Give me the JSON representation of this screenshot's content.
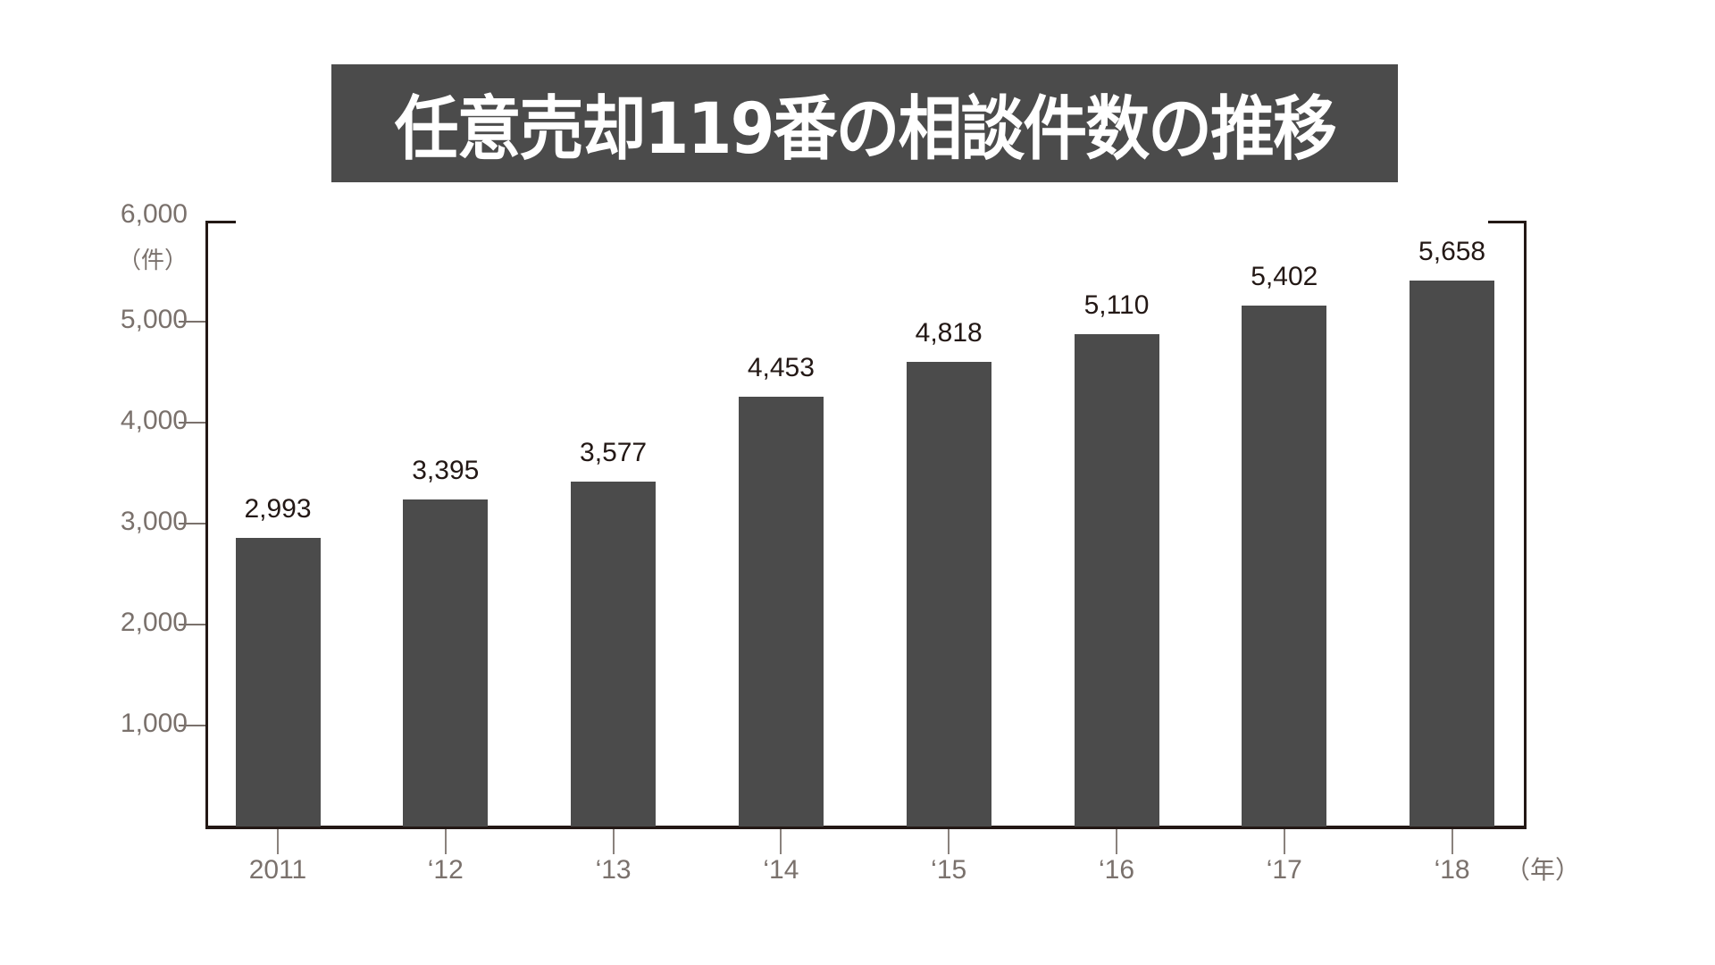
{
  "title": "任意売却119番の相談件数の推移",
  "y_axis": {
    "unit": "（件）",
    "ticks": [
      "1,000",
      "2,000",
      "3,000",
      "4,000",
      "5,000",
      "6,000"
    ]
  },
  "x_axis": {
    "unit": "（年）",
    "labels": [
      "2011",
      "‘12",
      "‘13",
      "‘14",
      "‘15",
      "‘16",
      "‘17",
      "‘18"
    ]
  },
  "bars": [
    {
      "label": "2011",
      "value": 2993,
      "display": "2,993"
    },
    {
      "label": "‘12",
      "value": 3395,
      "display": "3,395"
    },
    {
      "label": "‘13",
      "value": 3577,
      "display": "3,577"
    },
    {
      "label": "‘14",
      "value": 4453,
      "display": "4,453"
    },
    {
      "label": "‘15",
      "value": 4818,
      "display": "4,818"
    },
    {
      "label": "‘16",
      "value": 5110,
      "display": "5,110"
    },
    {
      "label": "‘17",
      "value": 5402,
      "display": "5,402"
    },
    {
      "label": "‘18",
      "value": 5658,
      "display": "5,658"
    }
  ],
  "colors": {
    "bar": "#4b4b4b",
    "title_bg": "#4b4b4b",
    "title_text": "#ffffff",
    "axis": "#231815",
    "tick_label": "#7a716c",
    "value_label": "#231815"
  },
  "chart_data": {
    "type": "bar",
    "title": "任意売却119番の相談件数の推移",
    "categories": [
      "2011",
      "‘12",
      "‘13",
      "‘14",
      "‘15",
      "‘16",
      "‘17",
      "‘18"
    ],
    "values": [
      2993,
      3395,
      3577,
      4453,
      4818,
      5110,
      5402,
      5658
    ],
    "xlabel": "（年）",
    "ylabel": "（件）",
    "ylim": [
      0,
      6000
    ],
    "yticks": [
      1000,
      2000,
      3000,
      4000,
      5000,
      6000
    ],
    "grid": false,
    "legend": null,
    "data_labels": true
  }
}
